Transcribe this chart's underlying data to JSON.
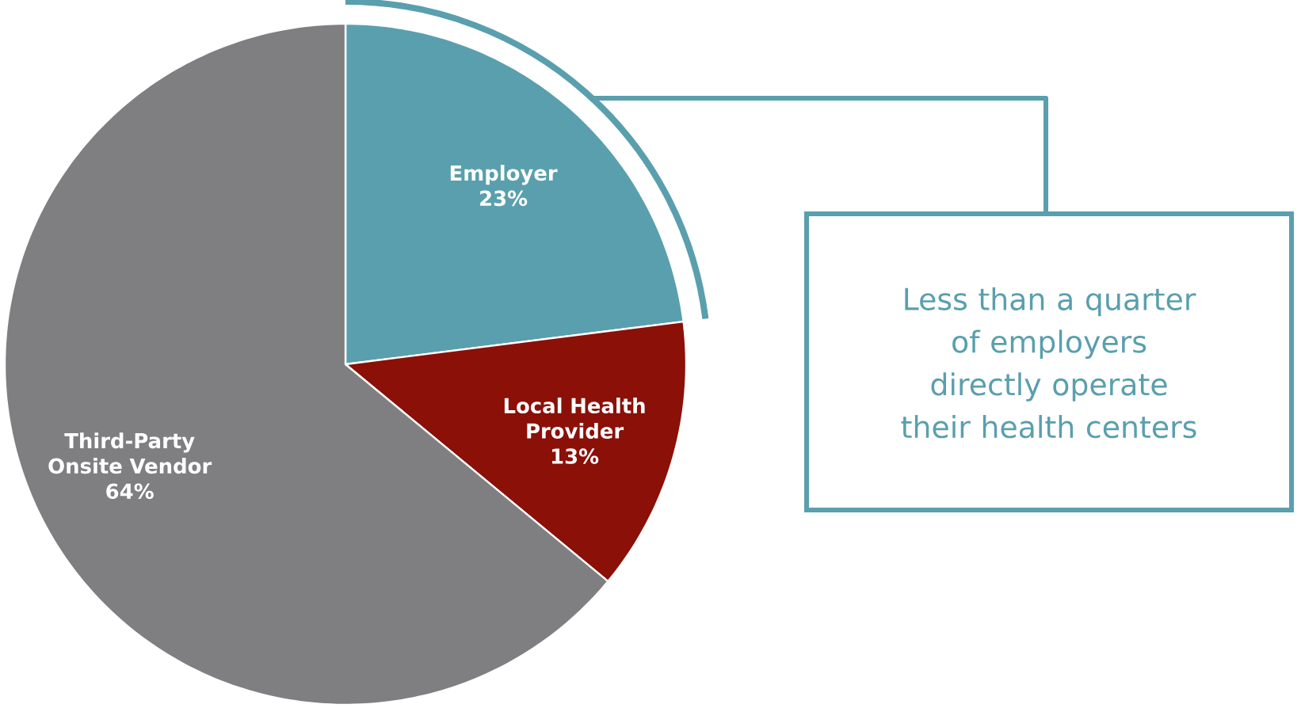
{
  "chart_data": {
    "type": "pie",
    "categories": [
      "Employer",
      "Local Health Provider",
      "Third-Party Onsite Vendor"
    ],
    "values": [
      23,
      13,
      64
    ],
    "value_labels": [
      "23%",
      "13%",
      "64%"
    ],
    "colors": [
      "#5a9fad",
      "#8b1008",
      "#7f7f82"
    ],
    "annotations": [
      "Less than a quarter of employers directly operate their health centers"
    ]
  }
}
